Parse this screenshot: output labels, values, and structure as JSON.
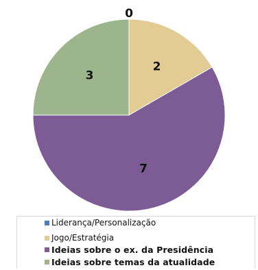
{
  "chart_data": {
    "type": "pie",
    "categories": [
      "Liderança/Personalização",
      "Jogo/Estratégia",
      "Ideias sobre o ex. da Presidência",
      "Ideias sobre temas da atualidade"
    ],
    "values": [
      0,
      2,
      7,
      3
    ],
    "data_labels": [
      "0",
      "2",
      "7",
      "3"
    ],
    "colors": [
      "#4a7dbf",
      "#e3cc94",
      "#7d5b94",
      "#9db58d"
    ],
    "legend_bold": [
      false,
      false,
      true,
      true
    ],
    "legend_position": "bottom",
    "start_angle_deg": 0,
    "direction": "clockwise"
  }
}
